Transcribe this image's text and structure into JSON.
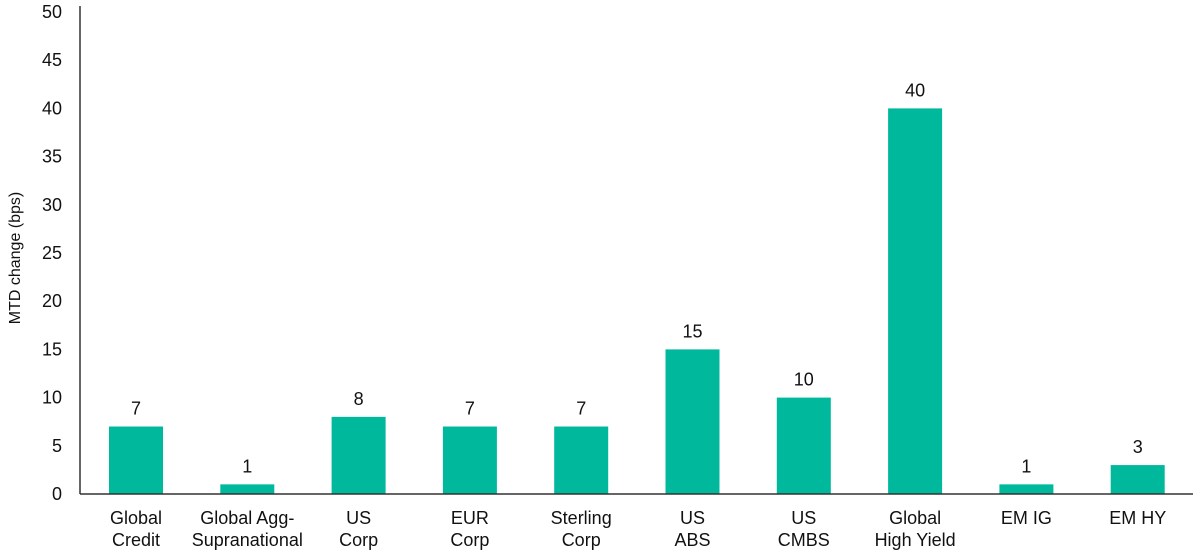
{
  "chart_data": {
    "type": "bar",
    "ylabel": "MTD change (bps)",
    "ylim": [
      0,
      50
    ],
    "yticks": [
      0,
      5,
      10,
      15,
      20,
      25,
      30,
      35,
      40,
      45,
      50
    ],
    "categories": [
      [
        "Global",
        "Credit"
      ],
      [
        "Global Agg-",
        "Supranational"
      ],
      [
        "US",
        "Corp"
      ],
      [
        "EUR",
        "Corp"
      ],
      [
        "Sterling",
        "Corp"
      ],
      [
        "US",
        "ABS"
      ],
      [
        "US",
        "CMBS"
      ],
      [
        "Global",
        "High Yield"
      ],
      [
        "EM IG"
      ],
      [
        "EM HY"
      ]
    ],
    "values": [
      7,
      1,
      8,
      7,
      7,
      15,
      10,
      40,
      1,
      3
    ],
    "data_labels": [
      "7",
      "1",
      "8",
      "7",
      "7",
      "15",
      "10",
      "40",
      "1",
      "3"
    ],
    "bar_color": "#00B89C",
    "axis_color": "#333333",
    "grid": false,
    "legend": "none"
  }
}
